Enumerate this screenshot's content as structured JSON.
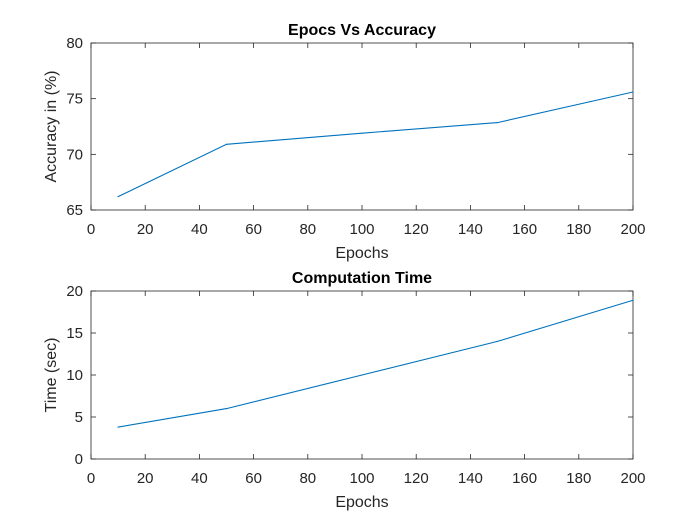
{
  "chart_data": [
    {
      "type": "line",
      "title": "Epocs Vs Accuracy",
      "xlabel": "Epochs",
      "ylabel": "Accuracy in (%)",
      "xlim": [
        0,
        200
      ],
      "ylim": [
        65,
        80
      ],
      "xticks": [
        0,
        20,
        40,
        60,
        80,
        100,
        120,
        140,
        160,
        180,
        200
      ],
      "yticks": [
        65,
        70,
        75,
        80
      ],
      "grid": false,
      "series": [
        {
          "color": "#0072BD",
          "x": [
            10,
            50,
            100,
            150,
            200
          ],
          "y": [
            66.2,
            70.9,
            71.9,
            72.85,
            75.6
          ]
        }
      ]
    },
    {
      "type": "line",
      "title": "Computation Time",
      "xlabel": "Epochs",
      "ylabel": "Time (sec)",
      "xlim": [
        0,
        200
      ],
      "ylim": [
        0,
        20
      ],
      "xticks": [
        0,
        20,
        40,
        60,
        80,
        100,
        120,
        140,
        160,
        180,
        200
      ],
      "yticks": [
        0,
        5,
        10,
        15,
        20
      ],
      "grid": false,
      "series": [
        {
          "color": "#0072BD",
          "x": [
            10,
            50,
            100,
            150,
            200
          ],
          "y": [
            3.8,
            6.0,
            10.0,
            14.0,
            18.9
          ]
        }
      ]
    }
  ]
}
